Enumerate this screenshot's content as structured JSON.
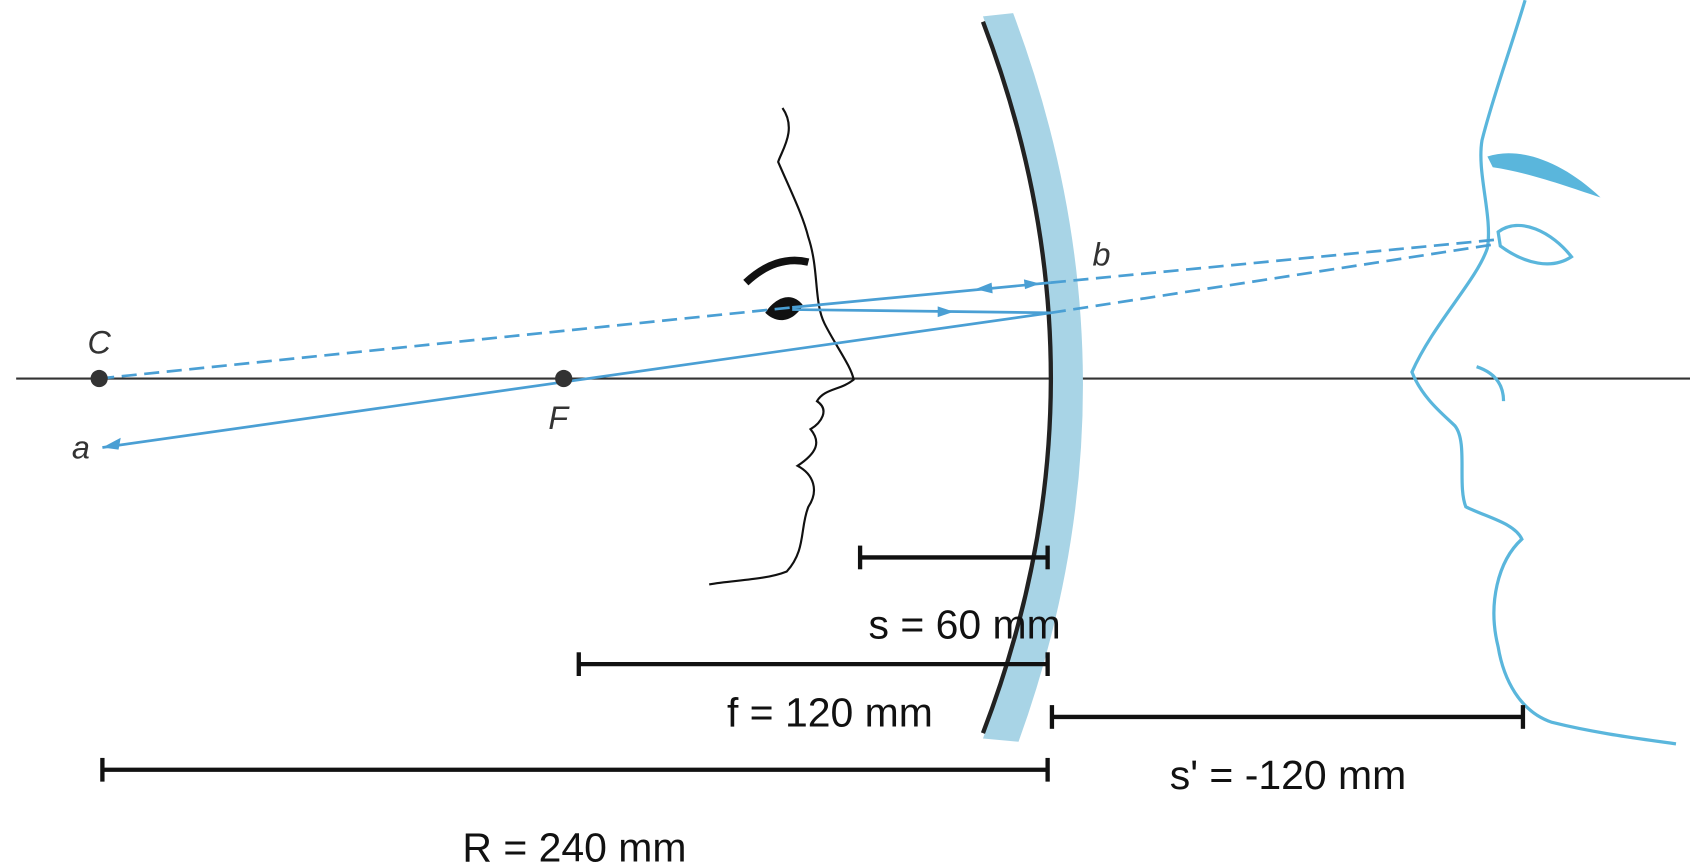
{
  "points": [
    {
      "label": "C"
    },
    {
      "label": "F"
    }
  ],
  "rays": [
    {
      "label": "a"
    },
    {
      "label": "b"
    }
  ],
  "dimensions": [
    {
      "label": "s = 60 mm"
    },
    {
      "label": "f = 120 mm"
    },
    {
      "label": "s' = -120 mm"
    },
    {
      "label": "R = 240 mm"
    }
  ]
}
